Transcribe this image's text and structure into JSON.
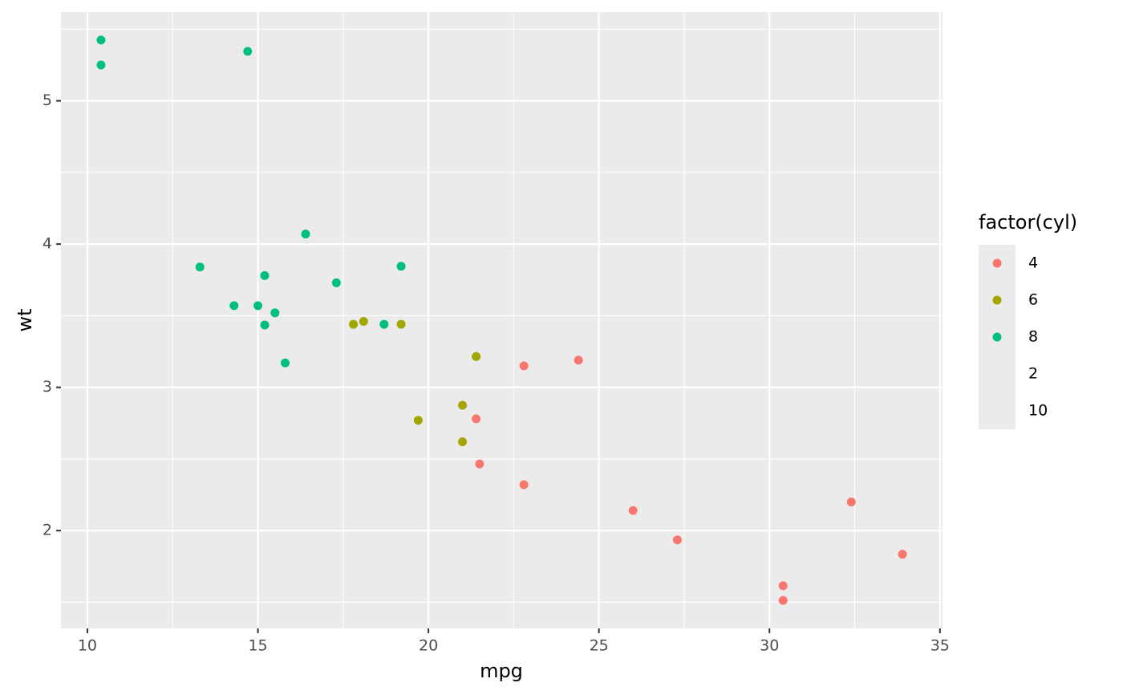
{
  "chart_data": {
    "type": "scatter",
    "x_label": "mpg",
    "y_label": "wt",
    "legend_title": "factor(cyl)",
    "legend_position": "right",
    "xlim": [
      9.225,
      35.075
    ],
    "ylim": [
      1.3175,
      5.6196
    ],
    "xticks": [
      10,
      15,
      20,
      25,
      30,
      35
    ],
    "yticks": [
      2,
      3,
      4,
      5
    ],
    "x_minor_ticks": [
      12.5,
      17.5,
      22.5,
      27.5,
      32.5
    ],
    "y_minor_ticks": [
      1.5,
      2.5,
      3.5,
      4.5,
      5.5
    ],
    "grid": true,
    "series": [
      {
        "name": "4",
        "color": "#F8766D",
        "x": [
          22.8,
          24.4,
          22.8,
          32.4,
          30.4,
          33.9,
          21.5,
          27.3,
          26,
          30.4,
          21.4
        ],
        "values": [
          2.32,
          3.19,
          3.15,
          2.2,
          1.615,
          1.835,
          2.465,
          1.935,
          2.14,
          1.513,
          2.78
        ]
      },
      {
        "name": "6",
        "color": "#A3A500",
        "x": [
          21,
          21,
          21.4,
          18.1,
          19.2,
          17.8,
          19.7
        ],
        "values": [
          2.62,
          2.875,
          3.215,
          3.46,
          3.44,
          3.44,
          2.77
        ]
      },
      {
        "name": "8",
        "color": "#00BF7D",
        "x": [
          18.7,
          14.3,
          16.4,
          17.3,
          15.2,
          10.4,
          10.4,
          14.7,
          15.5,
          15.2,
          13.3,
          19.2,
          15.8,
          15
        ],
        "values": [
          3.44,
          3.57,
          4.07,
          3.73,
          3.78,
          5.25,
          5.424,
          5.345,
          3.52,
          3.435,
          3.84,
          3.845,
          3.17,
          3.57
        ]
      },
      {
        "name": "2",
        "x": [],
        "values": []
      },
      {
        "name": "10",
        "x": [],
        "values": []
      }
    ]
  }
}
